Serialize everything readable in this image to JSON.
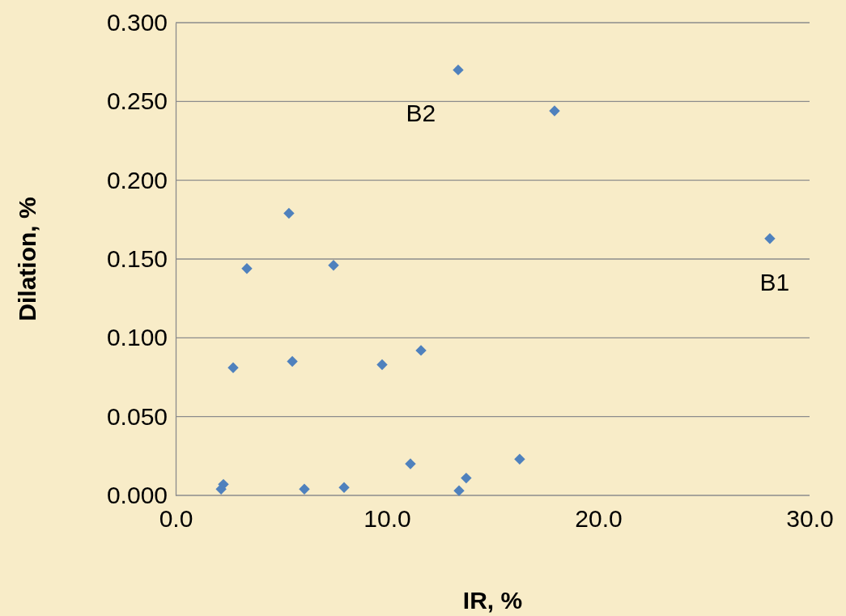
{
  "chart_data": {
    "type": "scatter",
    "xlabel": "IR, %",
    "ylabel": "Dilation, %",
    "xlim": [
      0,
      30
    ],
    "xticks": [
      {
        "value": 0,
        "label": "0.0"
      },
      {
        "value": 10,
        "label": "10.0"
      },
      {
        "value": 20,
        "label": "20.0"
      },
      {
        "value": 30,
        "label": "30.0"
      }
    ],
    "ylim": [
      0,
      0.3
    ],
    "yticks": [
      {
        "value": 0,
        "label": "0.000"
      },
      {
        "value": 0.05,
        "label": "0.050"
      },
      {
        "value": 0.1,
        "label": "0.100"
      },
      {
        "value": 0.15,
        "label": "0.150"
      },
      {
        "value": 0.2,
        "label": "0.200"
      },
      {
        "value": 0.25,
        "label": "0.250"
      },
      {
        "value": 0.3,
        "label": "0.300"
      }
    ],
    "grid": "y",
    "marker": "diamond",
    "series": [
      {
        "color": "#4f81bd",
        "x": [
          2.15,
          2.26,
          2.72,
          3.37,
          5.36,
          5.52,
          6.09,
          7.47,
          7.97,
          9.77,
          11.11,
          11.61,
          13.37,
          13.41,
          13.75,
          16.28,
          17.93,
          28.12
        ],
        "values": [
          0.004,
          0.007,
          0.081,
          0.144,
          0.179,
          0.085,
          0.004,
          0.146,
          0.005,
          0.083,
          0.02,
          0.092,
          0.27,
          0.003,
          0.011,
          0.023,
          0.244,
          0.163
        ]
      }
    ],
    "annotations": [
      {
        "text": "B2",
        "x": 13.37,
        "y": 0.27
      },
      {
        "text": "B1",
        "x": 28.12,
        "y": 0.163
      }
    ]
  }
}
